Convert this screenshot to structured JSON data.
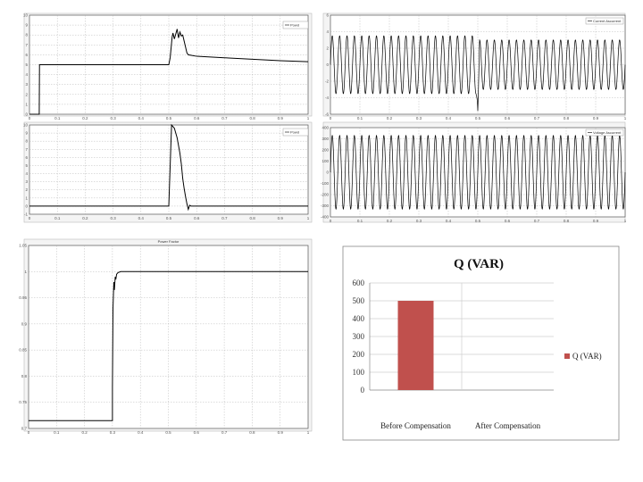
{
  "chart_data": [
    {
      "id": "top-left",
      "type": "line",
      "x_ticks": [
        "0",
        "0.1",
        "0.2",
        "0.3",
        "0.4",
        "0.5",
        "0.6",
        "0.7",
        "0.8",
        "0.9",
        "1"
      ],
      "y_ticks": [
        "0",
        "1",
        "2",
        "3",
        "4",
        "5",
        "6",
        "7",
        "8",
        "9",
        "10"
      ],
      "xlim": [
        0,
        1
      ],
      "ylim": [
        0,
        10
      ],
      "grid": true,
      "legend": "top-right",
      "legend_label": "Powd",
      "series": [
        {
          "color": "#000000",
          "x": [
            0,
            0.01,
            0.02,
            0.035,
            0.036,
            0.5,
            0.505,
            0.51,
            0.512,
            0.515,
            0.52,
            0.525,
            0.53,
            0.535,
            0.54,
            0.545,
            0.55,
            0.555,
            0.56,
            0.565,
            0.57,
            0.6,
            0.7,
            0.8,
            0.9,
            1.0
          ],
          "y": [
            0,
            0,
            0,
            0,
            5.0,
            5.0,
            5.7,
            7.2,
            7.8,
            8.2,
            7.6,
            8.1,
            8.6,
            7.7,
            8.3,
            7.9,
            8.0,
            7.4,
            6.8,
            6.2,
            6.0,
            5.85,
            5.7,
            5.55,
            5.4,
            5.3
          ]
        }
      ]
    },
    {
      "id": "bottom-left",
      "type": "line",
      "x_ticks": [
        "0",
        "0.1",
        "0.2",
        "0.3",
        "0.4",
        "0.5",
        "0.6",
        "0.7",
        "0.8",
        "0.9",
        "1"
      ],
      "y_ticks": [
        "-1",
        "0",
        "1",
        "2",
        "3",
        "4",
        "5",
        "6",
        "7",
        "8",
        "9",
        "10"
      ],
      "xlim": [
        0,
        1
      ],
      "ylim": [
        -1,
        10
      ],
      "grid": true,
      "legend": "top-right",
      "legend_label": "Powd",
      "series": [
        {
          "color": "#000000",
          "x": [
            0,
            0.5,
            0.51,
            0.52,
            0.53,
            0.54,
            0.545,
            0.55,
            0.555,
            0.56,
            0.565,
            0.57,
            0.575,
            0.58,
            1.0
          ],
          "y": [
            0,
            0,
            10,
            9.6,
            8.4,
            6.5,
            5.2,
            3.4,
            2.2,
            1.2,
            0.3,
            -0.4,
            0.1,
            0,
            0
          ]
        }
      ]
    },
    {
      "id": "top-right",
      "type": "line",
      "x_ticks": [
        "0",
        "0.1",
        "0.2",
        "0.3",
        "0.4",
        "0.5",
        "0.6",
        "0.7",
        "0.8",
        "0.9",
        "1"
      ],
      "y_ticks": [
        "-6",
        "-4",
        "-2",
        "0",
        "2",
        "4",
        "6"
      ],
      "xlim": [
        0,
        1
      ],
      "ylim": [
        -6,
        6
      ],
      "grid": true,
      "legend": "top-right",
      "legend_label": "Current Ascurrent",
      "series": [
        {
          "color": "#000000",
          "waveform": "sine",
          "cycles": 40,
          "amplitude_before": 3.5,
          "amplitude_after": 3.0,
          "change_x": 0.5,
          "dip_x": 0.5,
          "dip_y": -5.6
        }
      ]
    },
    {
      "id": "bottom-right",
      "type": "line",
      "x_ticks": [
        "0",
        "0.1",
        "0.2",
        "0.3",
        "0.4",
        "0.5",
        "0.6",
        "0.7",
        "0.8",
        "0.9",
        "1"
      ],
      "y_ticks": [
        "-400",
        "-300",
        "-200",
        "-100",
        "0",
        "100",
        "200",
        "300",
        "400"
      ],
      "xlim": [
        0,
        1
      ],
      "ylim": [
        -400,
        400
      ],
      "grid": true,
      "legend": "top-right",
      "legend_label": "Voltage Ascurrent",
      "series": [
        {
          "color": "#000000",
          "waveform": "sine",
          "cycles": 40,
          "amplitude_before": 330,
          "amplitude_after": 330,
          "change_x": 0.5
        }
      ]
    },
    {
      "id": "middle-left",
      "type": "line",
      "title": "Power Factor",
      "x_ticks": [
        "0",
        "0.1",
        "0.2",
        "0.3",
        "0.4",
        "0.5",
        "0.6",
        "0.7",
        "0.8",
        "0.9",
        "1"
      ],
      "y_ticks": [
        "0.7",
        "0.75",
        "0.8",
        "0.85",
        "0.9",
        "0.95",
        "1",
        "1.05"
      ],
      "xlim": [
        0,
        1
      ],
      "ylim": [
        0.7,
        1.05
      ],
      "grid": true,
      "series": [
        {
          "color": "#000000",
          "x": [
            0,
            0.3,
            0.3,
            0.302,
            0.305,
            0.307,
            0.31,
            0.312,
            0.315,
            0.32,
            0.33,
            1.0
          ],
          "y": [
            0.715,
            0.715,
            0.78,
            0.93,
            0.98,
            0.965,
            0.99,
            0.985,
            0.995,
            0.998,
            1.0,
            1.0
          ]
        }
      ]
    },
    {
      "id": "q-var",
      "type": "bar",
      "title": "Q (VAR)",
      "categories": [
        "Before Compensation",
        "After Compensation"
      ],
      "series": [
        {
          "name": "Q (VAR)",
          "values": [
            500,
            0
          ],
          "color": "#c0504d"
        }
      ],
      "y_ticks": [
        "0",
        "100",
        "200",
        "300",
        "400",
        "500",
        "600"
      ],
      "ylim": [
        0,
        600
      ],
      "grid": true,
      "legend": "right"
    }
  ]
}
